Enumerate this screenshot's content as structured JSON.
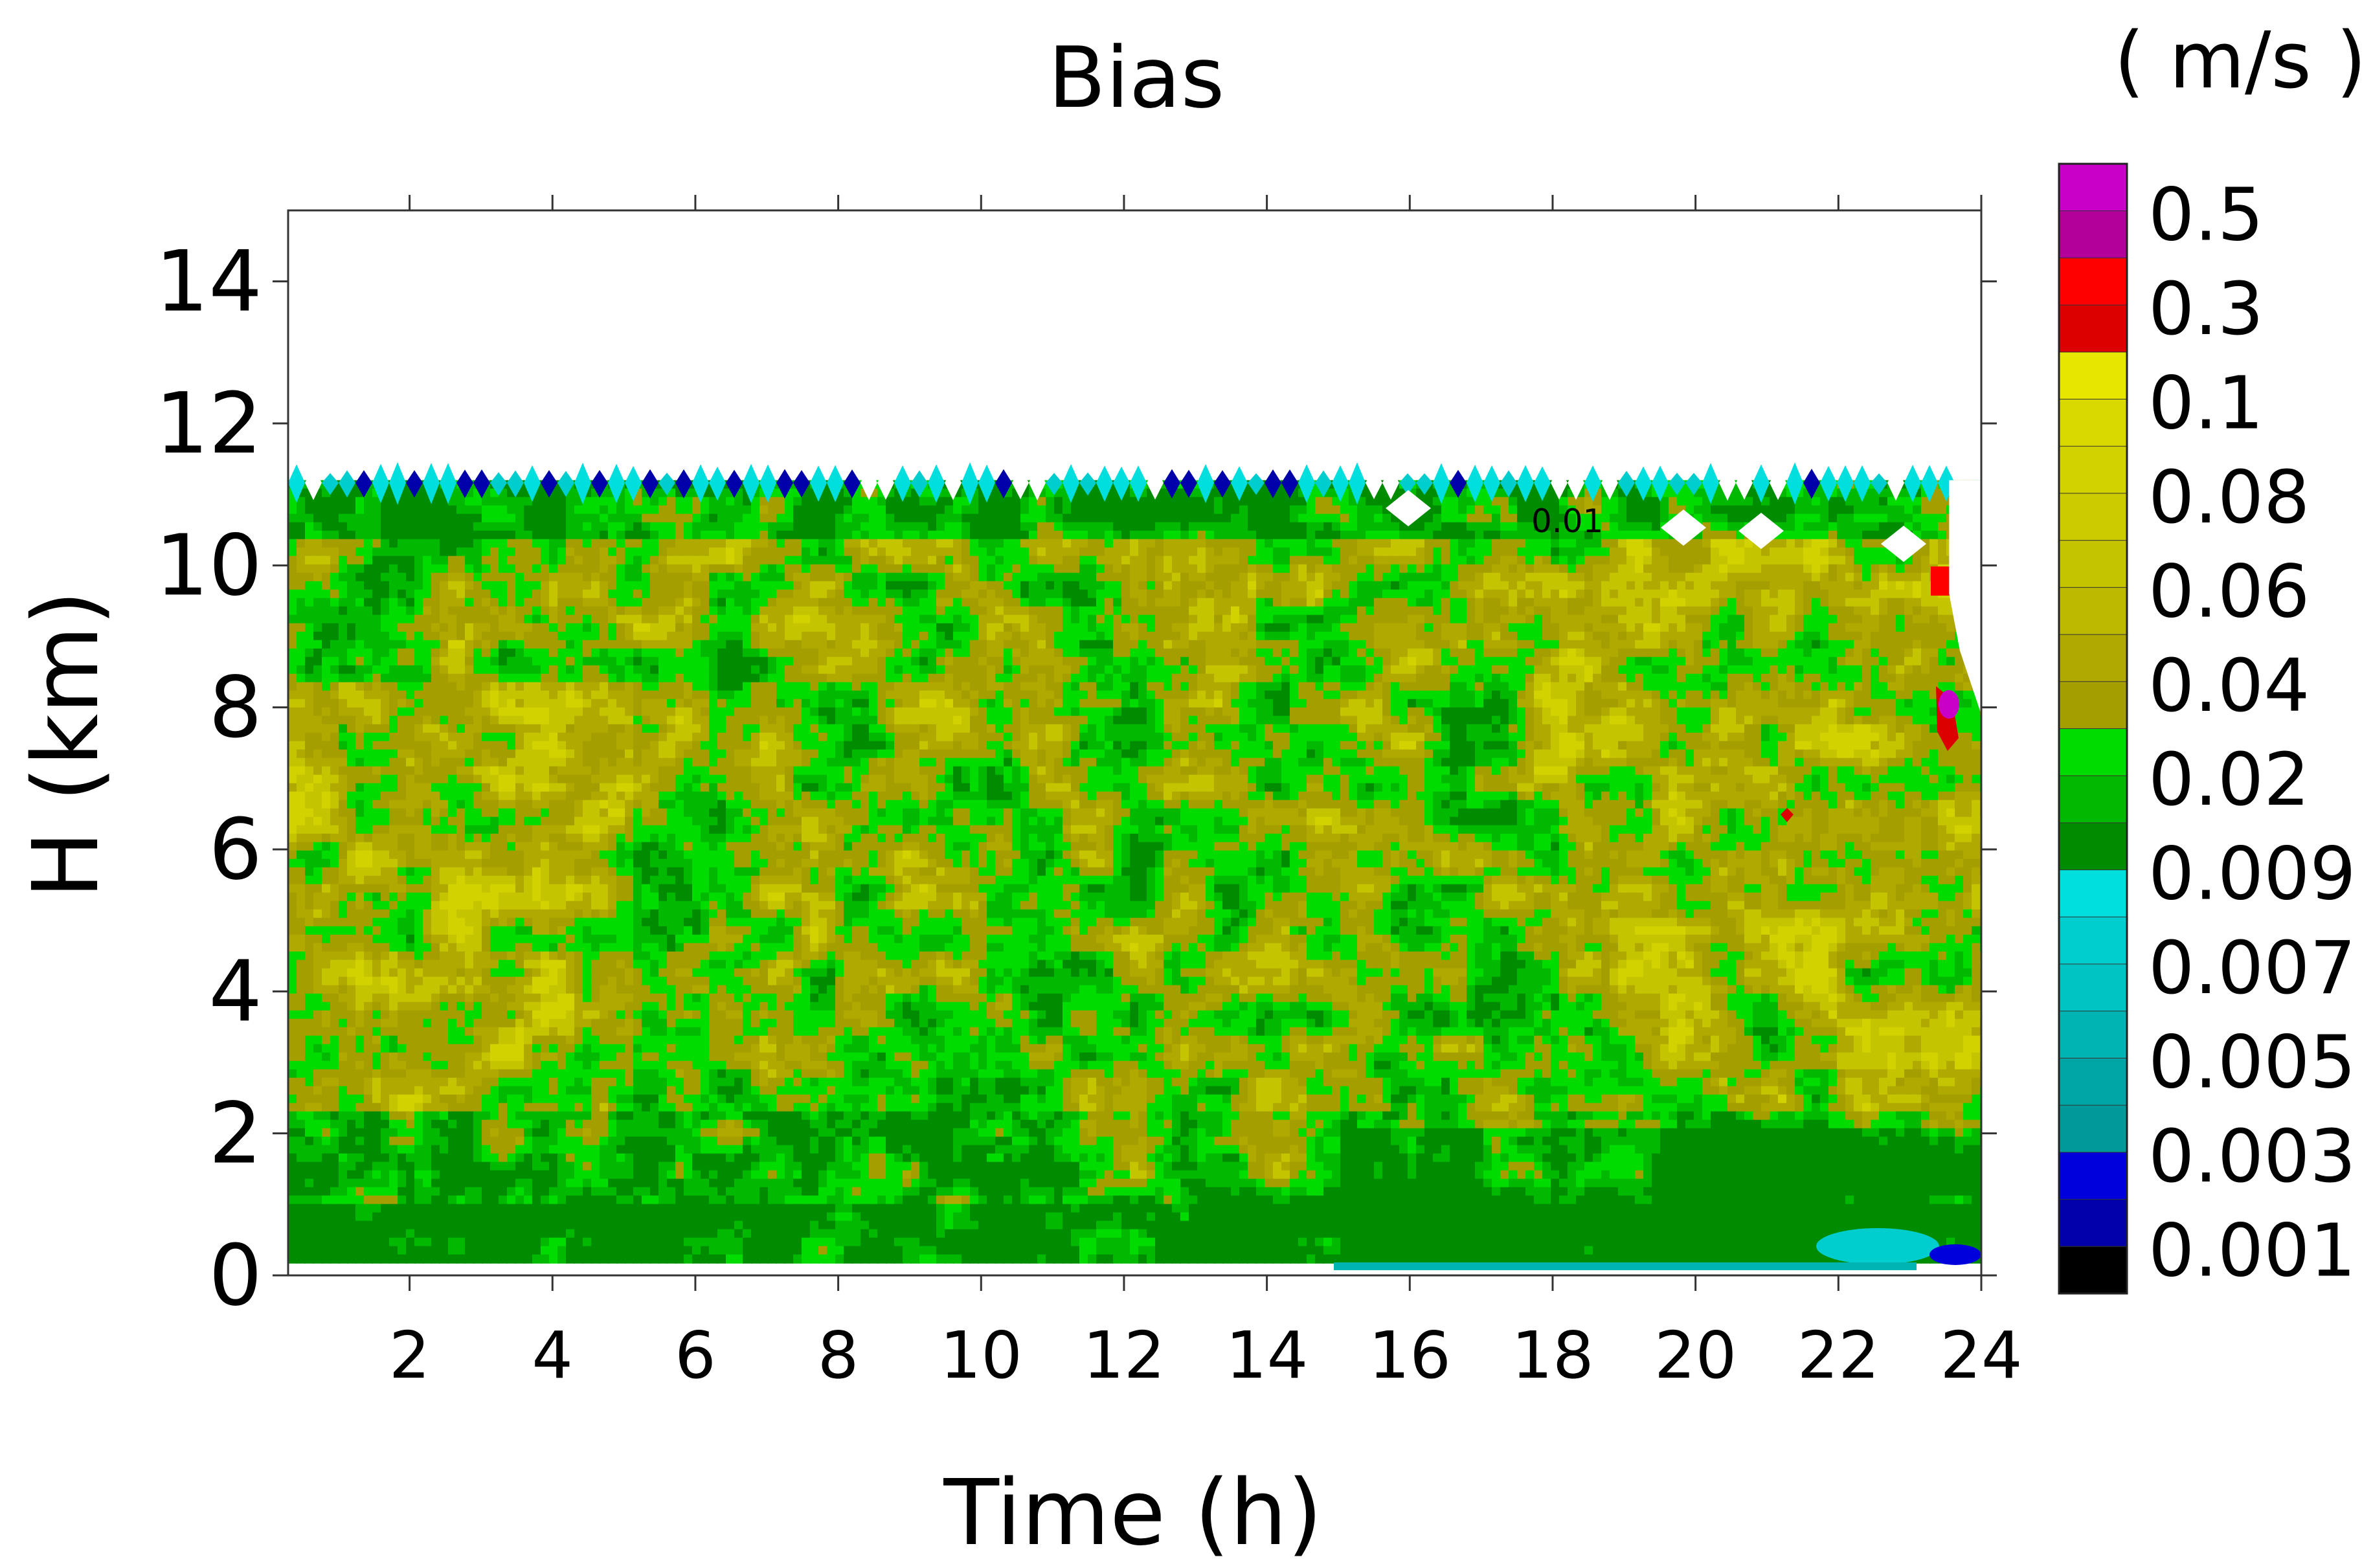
{
  "chart_data": {
    "type": "heatmap",
    "title": "Bias",
    "xlabel": "Time (h)",
    "ylabel": "H (km)",
    "xlim": [
      0.3,
      24
    ],
    "ylim": [
      0,
      15
    ],
    "x_ticks": [
      "2",
      "4",
      "6",
      "8",
      "10",
      "12",
      "14",
      "16",
      "18",
      "20",
      "22",
      "24"
    ],
    "y_ticks": [
      "0",
      "2",
      "4",
      "6",
      "8",
      "10",
      "12",
      "14"
    ],
    "contour_label": "0.01",
    "colorbar": {
      "unit": "( m/s )",
      "tick_labels": [
        "0.5",
        "0.3",
        "0.1",
        "0.08",
        "0.06",
        "0.04",
        "0.02",
        "0.009",
        "0.007",
        "0.005",
        "0.003",
        "0.001"
      ],
      "levels_top_to_bottom": [
        {
          "level": 0.7,
          "color": "#c800c8"
        },
        {
          "level": 0.5,
          "color": "#b4009b"
        },
        {
          "level": 0.4,
          "color": "#ff0000"
        },
        {
          "level": 0.3,
          "color": "#dc0000"
        },
        {
          "level": 0.2,
          "color": "#e6e600"
        },
        {
          "level": 0.1,
          "color": "#d9d900"
        },
        {
          "level": 0.09,
          "color": "#d2d200"
        },
        {
          "level": 0.08,
          "color": "#cbcb00"
        },
        {
          "level": 0.07,
          "color": "#c4c400"
        },
        {
          "level": 0.06,
          "color": "#bdb800"
        },
        {
          "level": 0.05,
          "color": "#b0aa00"
        },
        {
          "level": 0.04,
          "color": "#a59e00"
        },
        {
          "level": 0.03,
          "color": "#00dc00"
        },
        {
          "level": 0.02,
          "color": "#00b900"
        },
        {
          "level": 0.01,
          "color": "#008c00"
        },
        {
          "level": 0.009,
          "color": "#00dede"
        },
        {
          "level": 0.008,
          "color": "#00cdcd"
        },
        {
          "level": 0.007,
          "color": "#00c3c3"
        },
        {
          "level": 0.006,
          "color": "#00b4b4"
        },
        {
          "level": 0.005,
          "color": "#00a5a5"
        },
        {
          "level": 0.004,
          "color": "#009a9a"
        },
        {
          "level": 0.003,
          "color": "#0000dc"
        },
        {
          "level": 0.002,
          "color": "#0000aa"
        },
        {
          "level": 0.001,
          "color": "#000000"
        }
      ]
    },
    "data_top_km": 11.2,
    "grid": false
  }
}
